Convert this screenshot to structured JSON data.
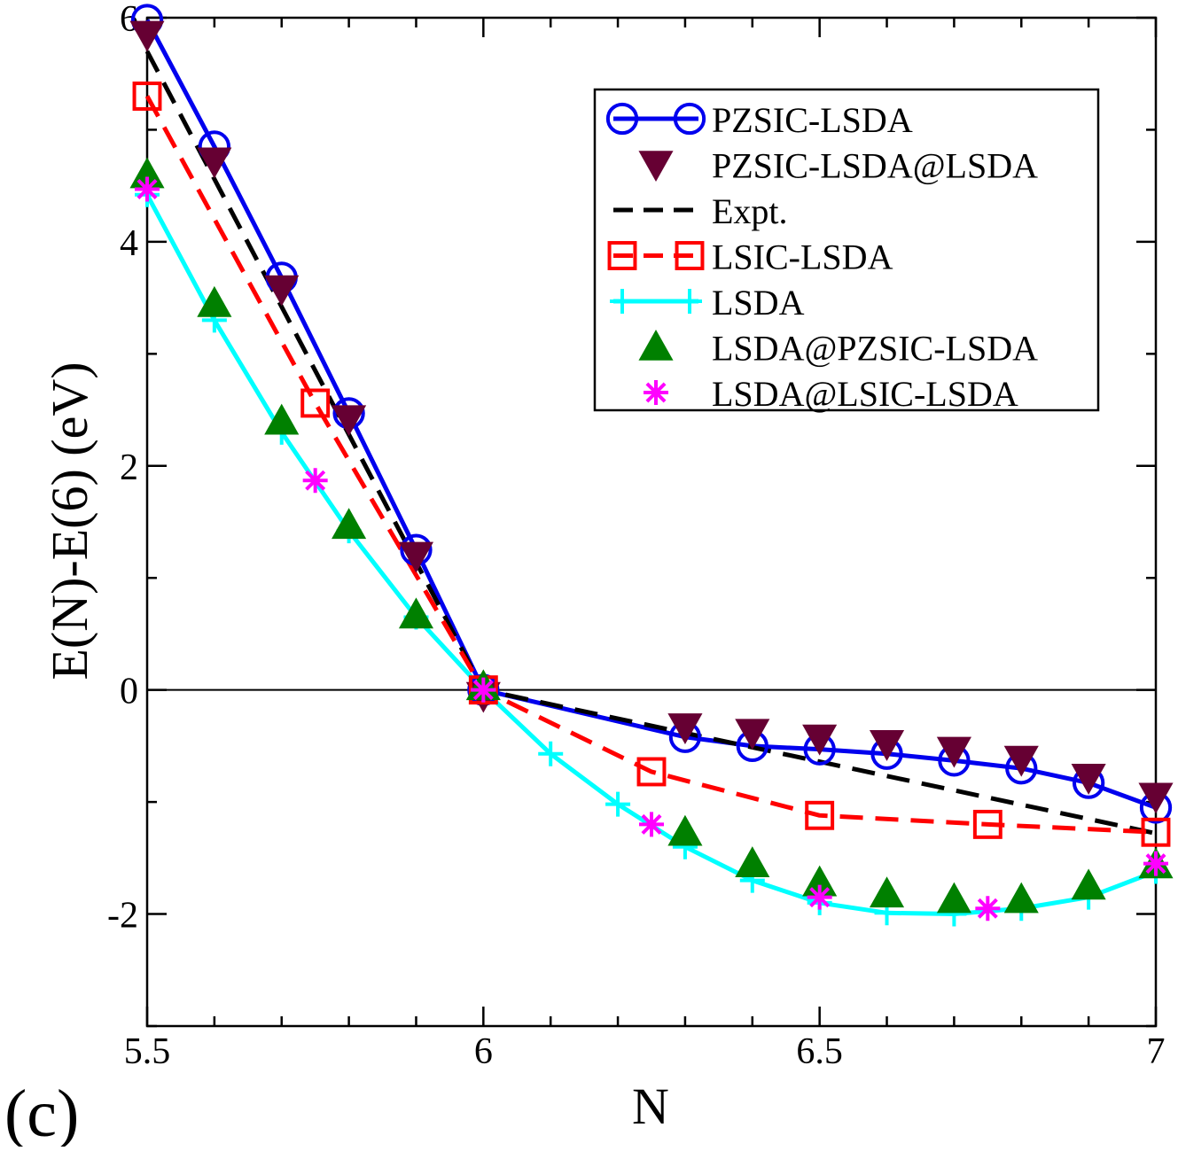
{
  "panel_label": "(c)",
  "chart_data": {
    "type": "line",
    "title": "",
    "xlabel": "N",
    "ylabel": "E(N)-E(6) (eV)",
    "xlim": [
      5.5,
      7.0
    ],
    "ylim": [
      -3,
      6
    ],
    "x_ticks": [
      5.5,
      6,
      6.5,
      7
    ],
    "x_tick_labels": [
      "5.5",
      "6",
      "6.5",
      "7"
    ],
    "y_ticks": [
      -2,
      0,
      2,
      4,
      6
    ],
    "y_tick_labels": [
      "-2",
      "0",
      "2",
      "4",
      "6"
    ],
    "grid": false,
    "zero_line": true,
    "legend_position": "top-right",
    "series": [
      {
        "name": "PZSIC-LSDA",
        "color": "#0000ee",
        "line": "solid",
        "marker": "circle",
        "x": [
          5.5,
          5.6,
          5.7,
          5.8,
          5.9,
          6.0,
          6.3,
          6.4,
          6.5,
          6.6,
          6.7,
          6.8,
          6.9,
          7.0
        ],
        "y": [
          5.98,
          4.85,
          3.68,
          2.47,
          1.25,
          0.0,
          -0.42,
          -0.5,
          -0.53,
          -0.57,
          -0.63,
          -0.7,
          -0.83,
          -1.05
        ]
      },
      {
        "name": "PZSIC-LSDA@LSDA",
        "color": "#660033",
        "line": "none",
        "marker": "triangle-down",
        "x": [
          5.5,
          5.6,
          5.7,
          5.8,
          5.9,
          6.0,
          6.3,
          6.4,
          6.5,
          6.6,
          6.7,
          6.8,
          6.9,
          7.0
        ],
        "y": [
          5.85,
          4.72,
          3.58,
          2.42,
          1.2,
          -0.05,
          -0.33,
          -0.38,
          -0.43,
          -0.48,
          -0.54,
          -0.62,
          -0.78,
          -0.95
        ]
      },
      {
        "name": "Expt.",
        "color": "#000000",
        "line": "dashed",
        "marker": "none",
        "x": [
          5.5,
          6.0,
          7.0
        ],
        "y": [
          5.7,
          0.0,
          -1.28
        ]
      },
      {
        "name": "LSIC-LSDA",
        "color": "#ff0000",
        "line": "dashed",
        "marker": "square",
        "x": [
          5.5,
          5.75,
          6.0,
          6.25,
          6.5,
          6.75,
          7.0
        ],
        "y": [
          5.3,
          2.56,
          0.0,
          -0.73,
          -1.12,
          -1.2,
          -1.27
        ]
      },
      {
        "name": "LSDA",
        "color": "#00ffff",
        "line": "solid",
        "marker": "plus",
        "x": [
          5.5,
          5.6,
          5.7,
          5.8,
          5.9,
          6.0,
          6.1,
          6.2,
          6.3,
          6.4,
          6.5,
          6.6,
          6.7,
          6.8,
          6.9,
          7.0
        ],
        "y": [
          4.42,
          3.3,
          2.3,
          1.42,
          0.65,
          0.0,
          -0.57,
          -1.02,
          -1.4,
          -1.7,
          -1.9,
          -1.99,
          -2.0,
          -1.95,
          -1.85,
          -1.62
        ]
      },
      {
        "name": "LSDA@PZSIC-LSDA",
        "color": "#008000",
        "line": "none",
        "marker": "triangle-up",
        "x": [
          5.5,
          5.6,
          5.7,
          5.8,
          5.9,
          6.0,
          6.3,
          6.4,
          6.5,
          6.6,
          6.7,
          6.8,
          6.9,
          7.0
        ],
        "y": [
          4.6,
          3.45,
          2.4,
          1.47,
          0.67,
          0.03,
          -1.27,
          -1.55,
          -1.72,
          -1.82,
          -1.87,
          -1.87,
          -1.75,
          -1.56
        ]
      },
      {
        "name": "LSDA@LSIC-LSDA",
        "color": "#ff00ff",
        "line": "none",
        "marker": "asterisk",
        "x": [
          5.5,
          5.75,
          6.0,
          6.25,
          6.5,
          6.75,
          7.0
        ],
        "y": [
          4.47,
          1.87,
          0.0,
          -1.2,
          -1.85,
          -1.95,
          -1.55
        ]
      }
    ]
  }
}
